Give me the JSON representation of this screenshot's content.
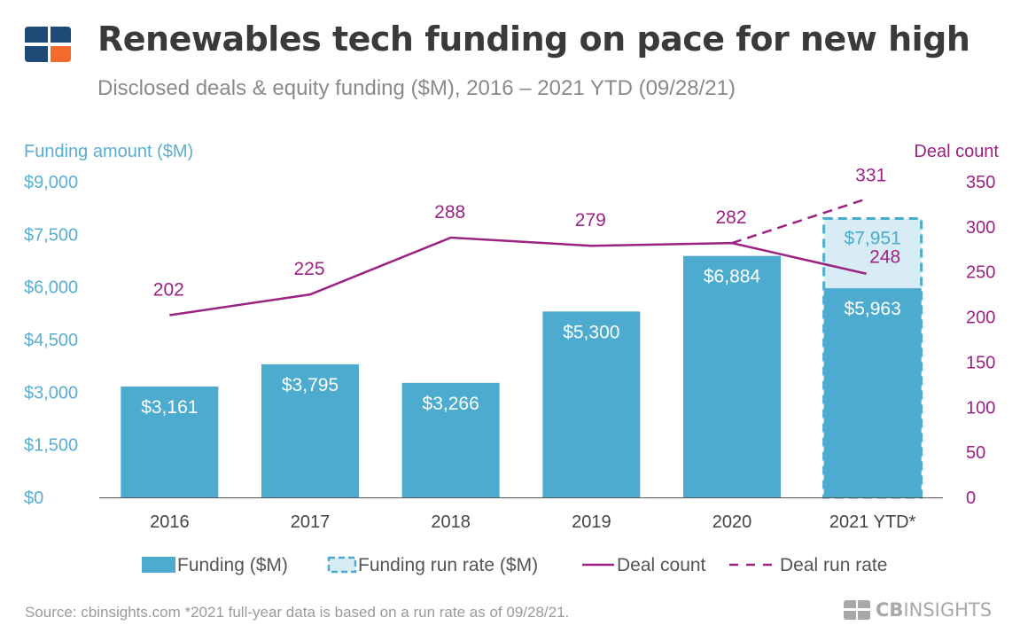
{
  "header": {
    "title": "Renewables tech funding on pace for new high",
    "subtitle": "Disclosed deals & equity funding ($M), 2016 – 2021 YTD (09/28/21)"
  },
  "footer": {
    "source": "Source: cbinsights.com  *2021 full-year data is based on a run rate as of 09/28/21.",
    "brand_cb": "CB",
    "brand_name": "INSIGHTS"
  },
  "colors": {
    "funding": "#4dabcf",
    "run_rate_fill": "#d7ecf5",
    "deal": "#9c2283",
    "axis_left": "#5aaed1",
    "title": "#3a3a3a",
    "logo_blue": "#1f4a78",
    "logo_orange": "#f26b2a"
  },
  "chart_data": {
    "type": "bar",
    "categories": [
      "2016",
      "2017",
      "2018",
      "2019",
      "2020",
      "2021 YTD*"
    ],
    "y_left": {
      "label": "Funding amount ($M)",
      "min": 0,
      "max": 9000,
      "ticks": [
        0,
        1500,
        3000,
        4500,
        6000,
        7500,
        9000
      ],
      "tick_labels": [
        "$0",
        "$1,500",
        "$3,000",
        "$4,500",
        "$6,000",
        "$7,500",
        "$9,000"
      ]
    },
    "y_right": {
      "label": "Deal count",
      "min": 0,
      "max": 350,
      "ticks": [
        0,
        50,
        100,
        150,
        200,
        250,
        300,
        350
      ],
      "tick_labels": [
        "0",
        "50",
        "100",
        "150",
        "200",
        "250",
        "300",
        "350"
      ]
    },
    "series": [
      {
        "name": "Funding ($M)",
        "type": "bar",
        "axis": "left",
        "values": [
          3161,
          3795,
          3266,
          5300,
          6884,
          5963
        ],
        "labels": [
          "$3,161",
          "$3,795",
          "$3,266",
          "$5,300",
          "$6,884",
          "$5,963"
        ]
      },
      {
        "name": "Funding run rate ($M)",
        "type": "bar-dashed",
        "axis": "left",
        "values": [
          null,
          null,
          null,
          null,
          null,
          7951
        ],
        "labels": [
          "",
          "",
          "",
          "",
          "",
          "$7,951"
        ]
      },
      {
        "name": "Deal count",
        "type": "line",
        "axis": "right",
        "values": [
          202,
          225,
          288,
          279,
          282,
          248
        ],
        "labels": [
          "202",
          "225",
          "288",
          "279",
          "282",
          "248"
        ]
      },
      {
        "name": "Deal run rate",
        "type": "line-dashed",
        "axis": "right",
        "values": [
          null,
          null,
          null,
          null,
          282,
          331
        ],
        "labels": [
          "",
          "",
          "",
          "",
          "",
          "331"
        ]
      }
    ],
    "legend_position": "bottom",
    "grid": false
  }
}
